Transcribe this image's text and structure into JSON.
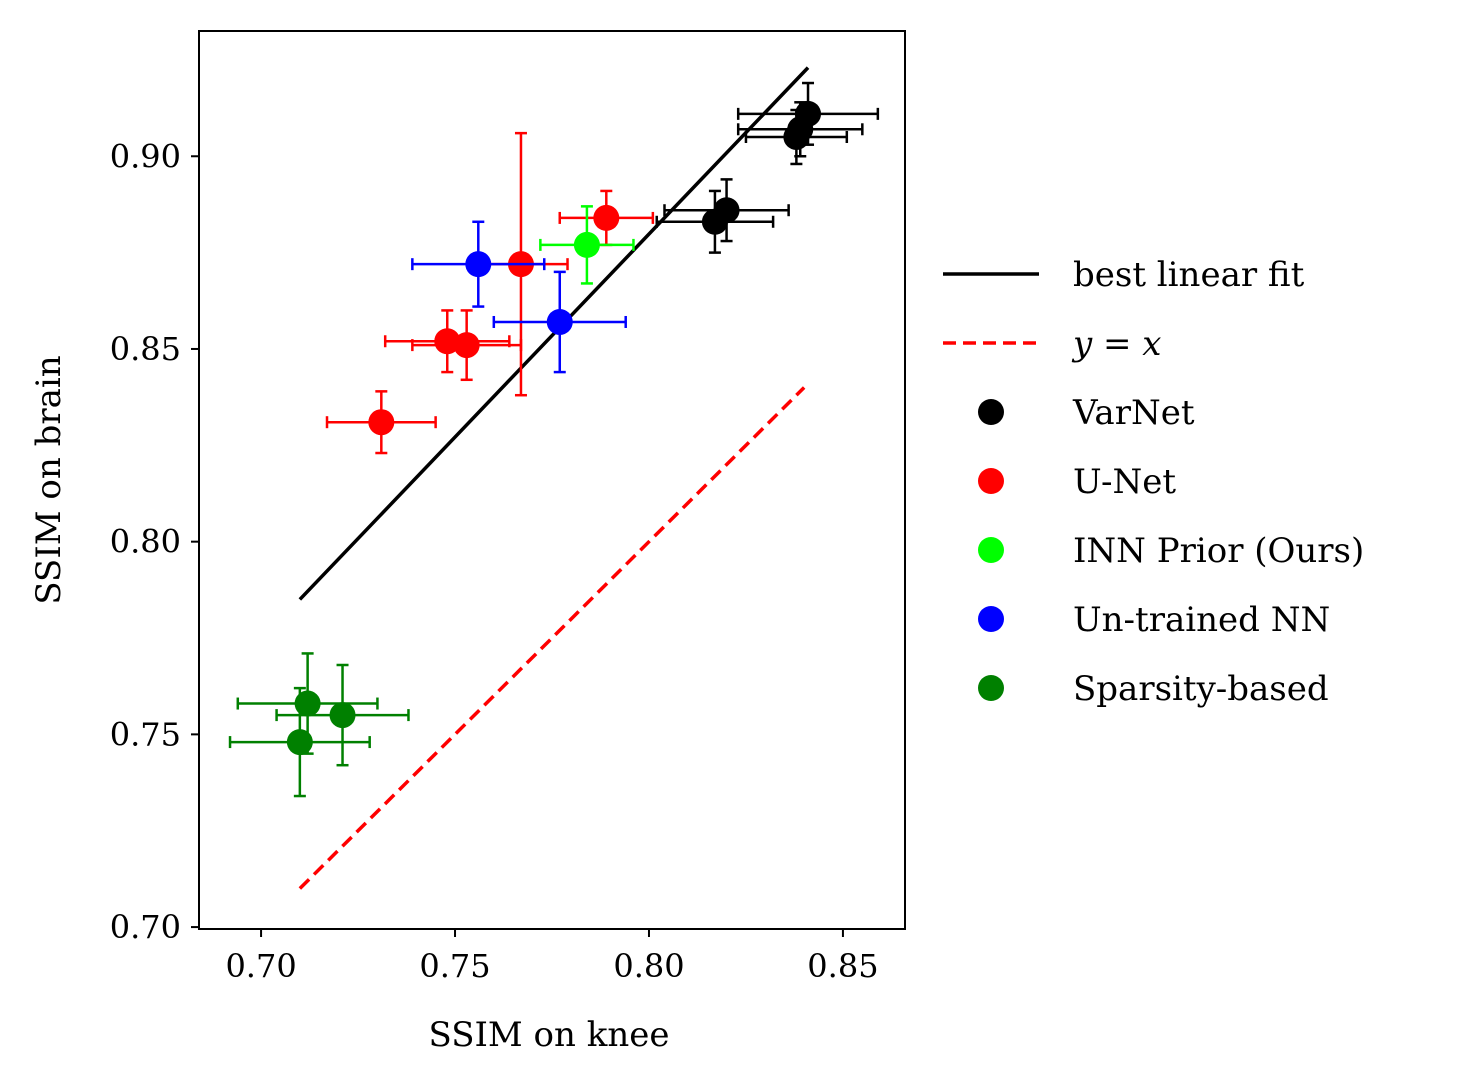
{
  "chart_data": {
    "type": "scatter",
    "xlabel": "SSIM on knee",
    "ylabel": "SSIM on brain",
    "xlim": [
      0.684,
      0.866
    ],
    "ylim": [
      0.6995,
      0.9325
    ],
    "xticks": [
      0.7,
      0.75,
      0.8,
      0.85
    ],
    "yticks": [
      0.7,
      0.75,
      0.8,
      0.85,
      0.9
    ],
    "xtick_labels": [
      "0.70",
      "0.75",
      "0.80",
      "0.85"
    ],
    "ytick_labels": [
      "0.70",
      "0.75",
      "0.80",
      "0.85",
      "0.90"
    ],
    "legend_position": "right, outside plot",
    "lines": [
      {
        "name": "best linear fit",
        "legend_label": "best linear fit",
        "style": "solid",
        "color": "#000000",
        "x": [
          0.71,
          0.841
        ],
        "y": [
          0.785,
          0.923
        ]
      },
      {
        "name": "y=x",
        "legend_label": "y = x",
        "style": "dashed",
        "color": "#ff0000",
        "x": [
          0.71,
          0.84
        ],
        "y": [
          0.71,
          0.84
        ]
      }
    ],
    "series": [
      {
        "name": "VarNet",
        "color": "#000000",
        "points": [
          {
            "x": 0.841,
            "y": 0.911,
            "xerr": 0.018,
            "yerr": 0.008
          },
          {
            "x": 0.839,
            "y": 0.907,
            "xerr": 0.016,
            "yerr": 0.007
          },
          {
            "x": 0.838,
            "y": 0.905,
            "xerr": 0.013,
            "yerr": 0.007
          },
          {
            "x": 0.82,
            "y": 0.886,
            "xerr": 0.016,
            "yerr": 0.008
          },
          {
            "x": 0.817,
            "y": 0.883,
            "xerr": 0.015,
            "yerr": 0.008
          }
        ]
      },
      {
        "name": "U-Net",
        "color": "#ff0000",
        "points": [
          {
            "x": 0.789,
            "y": 0.884,
            "xerr": 0.012,
            "yerr": 0.007
          },
          {
            "x": 0.767,
            "y": 0.872,
            "xerr": 0.012,
            "yerr": 0.034
          },
          {
            "x": 0.748,
            "y": 0.852,
            "xerr": 0.016,
            "yerr": 0.008
          },
          {
            "x": 0.753,
            "y": 0.851,
            "xerr": 0.014,
            "yerr": 0.009
          },
          {
            "x": 0.731,
            "y": 0.831,
            "xerr": 0.014,
            "yerr": 0.008
          }
        ]
      },
      {
        "name": "INN Prior (Ours)",
        "color": "#00ff00",
        "points": [
          {
            "x": 0.784,
            "y": 0.877,
            "xerr": 0.012,
            "yerr": 0.01
          }
        ]
      },
      {
        "name": "Un-trained NN",
        "color": "#0000ff",
        "points": [
          {
            "x": 0.756,
            "y": 0.872,
            "xerr": 0.017,
            "yerr": 0.011
          },
          {
            "x": 0.777,
            "y": 0.857,
            "xerr": 0.017,
            "yerr": 0.013
          }
        ]
      },
      {
        "name": "Sparsity-based",
        "color": "#008000",
        "points": [
          {
            "x": 0.712,
            "y": 0.758,
            "xerr": 0.018,
            "yerr": 0.013
          },
          {
            "x": 0.721,
            "y": 0.755,
            "xerr": 0.017,
            "yerr": 0.013
          },
          {
            "x": 0.71,
            "y": 0.748,
            "xerr": 0.018,
            "yerr": 0.014
          }
        ]
      }
    ]
  }
}
